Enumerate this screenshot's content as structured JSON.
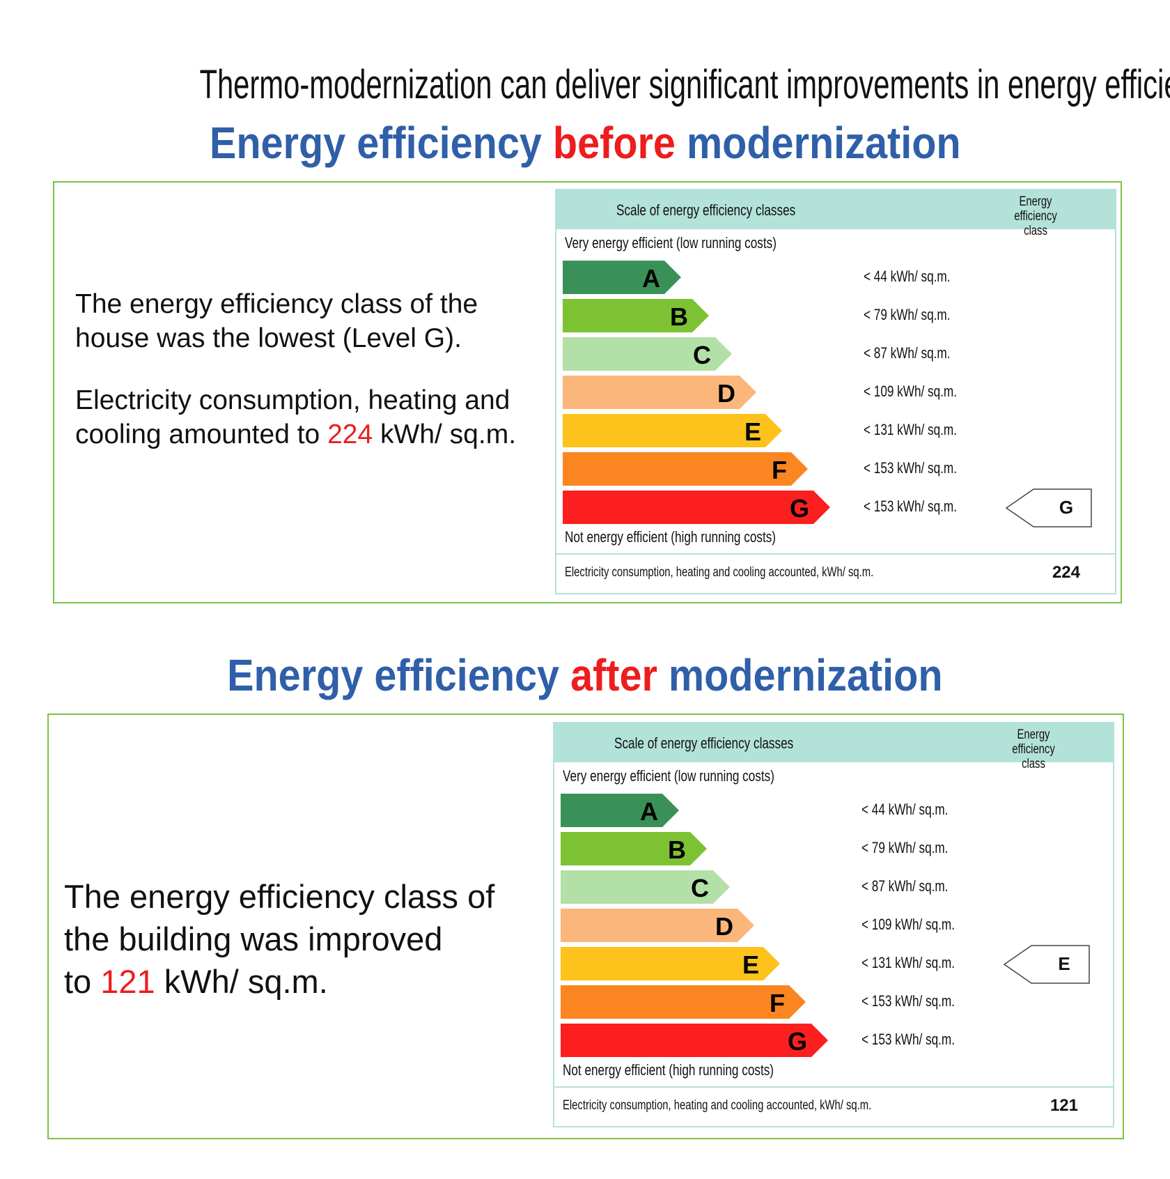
{
  "title": "Thermo-modernization can deliver significant improvements in energy efficiency",
  "sections": [
    {
      "heading": {
        "pre": "Energy efficiency ",
        "highlight": "before",
        "post": " modernization"
      },
      "description": {
        "p1": "The energy efficiency class of the house was the lowest (Level G).",
        "p2_pre": "Electricity consumption, heating and cooling amounted to ",
        "p2_value": "224",
        "p2_post": " kWh/ sq.m."
      },
      "label": {
        "header_scale": "Scale of energy efficiency classes",
        "header_class": "Energy efficiency class",
        "top_note": "Very energy efficient (low running costs)",
        "bottom_note": "Not energy efficient (high running costs)",
        "classes": [
          {
            "letter": "A",
            "range": "< 44 kWh/ sq.m.",
            "color": "#3a9158"
          },
          {
            "letter": "B",
            "range": "< 79 kWh/ sq.m.",
            "color": "#7dc232"
          },
          {
            "letter": "C",
            "range": "< 87 kWh/ sq.m.",
            "color": "#b3e0a6"
          },
          {
            "letter": "D",
            "range": "< 109 kWh/ sq.m.",
            "color": "#fbb77b"
          },
          {
            "letter": "E",
            "range": "< 131 kWh/ sq.m.",
            "color": "#fdc31c"
          },
          {
            "letter": "F",
            "range": "< 153 kWh/ sq.m.",
            "color": "#fb8520"
          },
          {
            "letter": "G",
            "range": "< 153 kWh/ sq.m.",
            "color": "#fb1f1f"
          }
        ],
        "current_class": "G",
        "footer_label": "Electricity consumption, heating and cooling accounted, kWh/ sq.m.",
        "footer_value": "224"
      }
    },
    {
      "heading": {
        "pre": "Energy efficiency ",
        "highlight": "after",
        "post": " modernization"
      },
      "description": {
        "l1": "The energy efficiency class of",
        "l2": "the building was improved",
        "l3_pre": "to ",
        "l3_value": "121",
        "l3_post": " kWh/ sq.m."
      },
      "label": {
        "header_scale": "Scale of energy efficiency classes",
        "header_class": "Energy efficiency class",
        "top_note": "Very energy efficient (low running costs)",
        "bottom_note": "Not energy efficient (high running costs)",
        "classes": [
          {
            "letter": "A",
            "range": "< 44 kWh/ sq.m.",
            "color": "#3a9158"
          },
          {
            "letter": "B",
            "range": "< 79 kWh/ sq.m.",
            "color": "#7dc232"
          },
          {
            "letter": "C",
            "range": "< 87 kWh/ sq.m.",
            "color": "#b3e0a6"
          },
          {
            "letter": "D",
            "range": "< 109 kWh/ sq.m.",
            "color": "#fbb77b"
          },
          {
            "letter": "E",
            "range": "< 131 kWh/ sq.m.",
            "color": "#fdc31c"
          },
          {
            "letter": "F",
            "range": "< 153 kWh/ sq.m.",
            "color": "#fb8520"
          },
          {
            "letter": "G",
            "range": "< 153 kWh/ sq.m.",
            "color": "#fb1f1f"
          }
        ],
        "current_class": "E",
        "footer_label": "Electricity consumption, heating and cooling accounted, kWh/ sq.m.",
        "footer_value": "121"
      }
    }
  ]
}
